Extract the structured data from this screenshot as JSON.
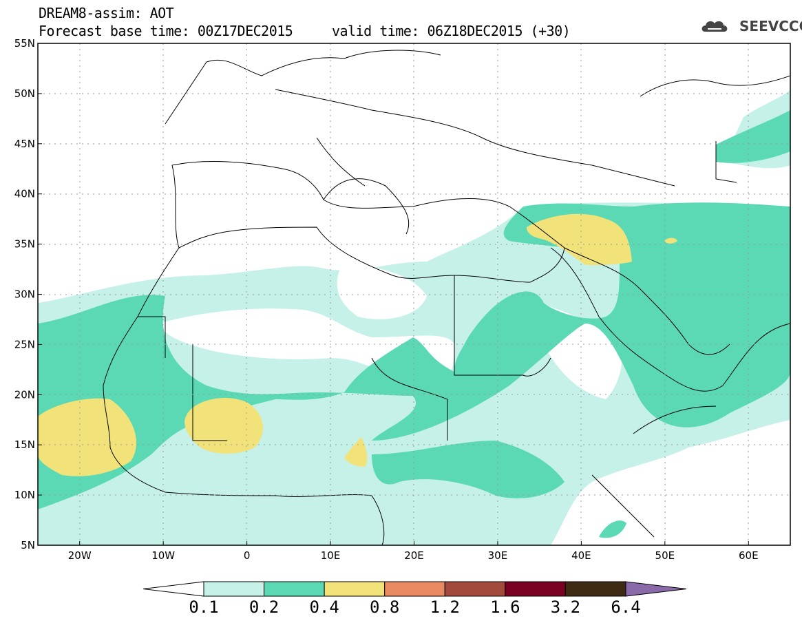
{
  "header": {
    "title": "DREAM8-assim: AOT",
    "base_time": "Forecast base time: 00Z17DEC2015",
    "valid_time": "valid time: 06Z18DEC2015 (+30)",
    "logo_text": "SEEVCCC"
  },
  "map": {
    "lon_labels": [
      "20W",
      "10W",
      "0",
      "10E",
      "20E",
      "30E",
      "40E",
      "50E",
      "60E"
    ],
    "lat_labels": [
      "55N",
      "50N",
      "45N",
      "40N",
      "35N",
      "30N",
      "25N",
      "20N",
      "15N",
      "10N",
      "5N"
    ],
    "lon_range": [
      -25,
      65
    ],
    "lat_range": [
      5,
      55
    ]
  },
  "colorbar": {
    "labels": [
      "0.1",
      "0.2",
      "0.4",
      "0.8",
      "1.2",
      "1.6",
      "3.2",
      "6.4"
    ],
    "colors": [
      "#ffffff",
      "#c5f1e9",
      "#5ad9b4",
      "#f1e27a",
      "#e98a63",
      "#a44a3d",
      "#7a0022",
      "#3f2a14",
      "#8a6aa8"
    ]
  }
}
